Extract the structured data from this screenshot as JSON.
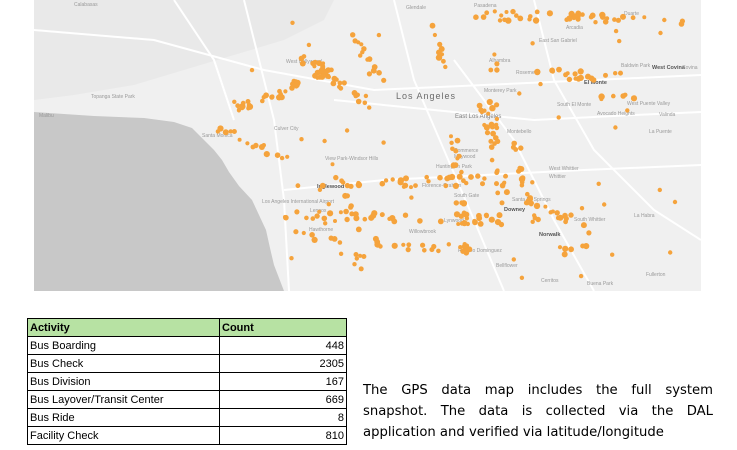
{
  "map": {
    "dot_color": "#f5a33c",
    "ocean_color": "#c8c8c8",
    "land_color": "#f0f0f0",
    "place_labels": [
      "Calabasas",
      "Glendale",
      "Pasadena",
      "Arcadia",
      "Duarte",
      "East San Gabriel",
      "Alhambra",
      "Rosemead",
      "El Monte",
      "Baldwin Park",
      "West Covina",
      "Covina",
      "Monterey Park",
      "South El Monte",
      "Avocado Heights",
      "West Puente Valley",
      "Valinda",
      "La Puente",
      "Topanga State Park",
      "Malibu",
      "West Hollywood",
      "Los Angeles",
      "East Los Angeles",
      "Montebello",
      "Santa Monica",
      "Culver City",
      "Commerce",
      "Maywood",
      "View Park-Windsor Hills",
      "Huntington Park",
      "West Whittier",
      "Whittier",
      "Florence-Graham",
      "South Gate",
      "Inglewood",
      "Los Angeles International Airport",
      "Lennox",
      "Downey",
      "Santa Fe Springs",
      "Hawthorne",
      "Willowbrook",
      "Lynwood",
      "Rancho Dominguez",
      "Norwalk",
      "South Whittier",
      "La Habra",
      "Bellflower",
      "Cerritos",
      "Buena Park",
      "Fullerton"
    ]
  },
  "table": {
    "headers": [
      "Activity",
      "Count"
    ],
    "rows": [
      {
        "activity": "Bus Boarding",
        "count": "448"
      },
      {
        "activity": "Bus Check",
        "count": "2305"
      },
      {
        "activity": "Bus Division",
        "count": "167"
      },
      {
        "activity": "Bus Layover/Transit Center",
        "count": "669"
      },
      {
        "activity": "Bus Ride",
        "count": "8"
      },
      {
        "activity": "Facility Check",
        "count": "810"
      }
    ]
  },
  "caption": "The GPS data map includes the full system snapshot. The data is collected via the DAL application and verified via latitude/longitude"
}
